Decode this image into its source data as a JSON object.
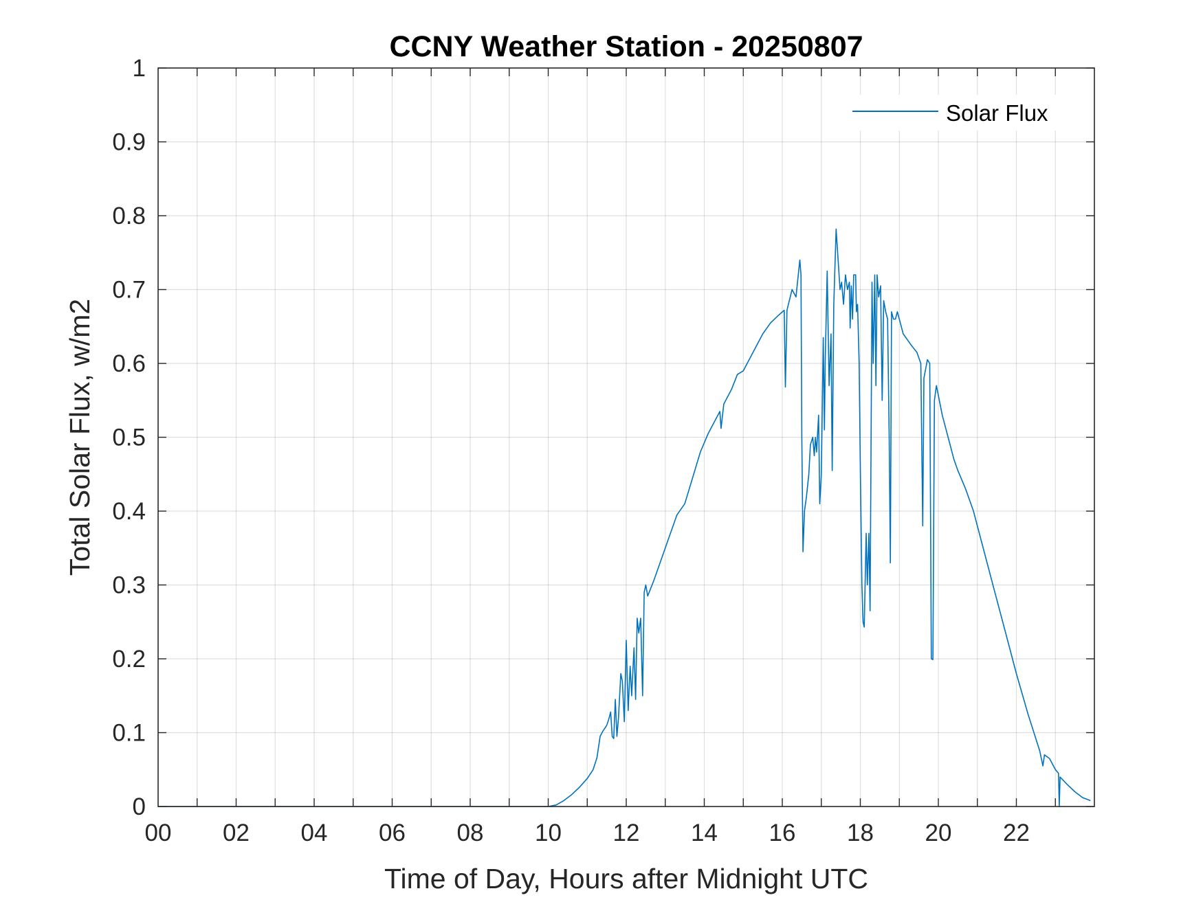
{
  "chart_data": {
    "type": "line",
    "title": "CCNY Weather Station - 20250807",
    "xlabel": "Time of Day, Hours after Midnight UTC",
    "ylabel": "Total Solar Flux, w/m2",
    "xlim": [
      0,
      24
    ],
    "ylim": [
      0,
      1
    ],
    "grid": true,
    "legend_position": "top-right",
    "x_ticks": [
      0,
      2,
      4,
      6,
      8,
      10,
      12,
      14,
      16,
      18,
      20,
      22
    ],
    "x_tick_labels": [
      "00",
      "02",
      "04",
      "06",
      "08",
      "10",
      "12",
      "14",
      "16",
      "18",
      "20",
      "22"
    ],
    "y_ticks": [
      0,
      0.1,
      0.2,
      0.3,
      0.4,
      0.5,
      0.6,
      0.7,
      0.8,
      0.9,
      1
    ],
    "y_tick_labels": [
      "0",
      "0.1",
      "0.2",
      "0.3",
      "0.4",
      "0.5",
      "0.6",
      "0.7",
      "0.8",
      "0.9",
      "1"
    ],
    "series": [
      {
        "name": "Solar Flux",
        "color": "#0072BD",
        "points": [
          [
            0,
            0
          ],
          [
            10.0,
            0
          ],
          [
            10.2,
            0.002
          ],
          [
            10.4,
            0.008
          ],
          [
            10.6,
            0.016
          ],
          [
            10.8,
            0.026
          ],
          [
            11.0,
            0.038
          ],
          [
            11.15,
            0.05
          ],
          [
            11.25,
            0.066
          ],
          [
            11.33,
            0.095
          ],
          [
            11.4,
            0.102
          ],
          [
            11.5,
            0.11
          ],
          [
            11.55,
            0.118
          ],
          [
            11.6,
            0.128
          ],
          [
            11.64,
            0.095
          ],
          [
            11.68,
            0.092
          ],
          [
            11.72,
            0.145
          ],
          [
            11.76,
            0.095
          ],
          [
            11.8,
            0.12
          ],
          [
            11.86,
            0.18
          ],
          [
            11.9,
            0.17
          ],
          [
            11.95,
            0.115
          ],
          [
            12.0,
            0.225
          ],
          [
            12.05,
            0.13
          ],
          [
            12.1,
            0.19
          ],
          [
            12.14,
            0.15
          ],
          [
            12.2,
            0.215
          ],
          [
            12.24,
            0.145
          ],
          [
            12.28,
            0.255
          ],
          [
            12.32,
            0.235
          ],
          [
            12.37,
            0.255
          ],
          [
            12.42,
            0.15
          ],
          [
            12.46,
            0.29
          ],
          [
            12.5,
            0.3
          ],
          [
            12.55,
            0.285
          ],
          [
            12.7,
            0.305
          ],
          [
            12.9,
            0.335
          ],
          [
            13.1,
            0.365
          ],
          [
            13.3,
            0.395
          ],
          [
            13.5,
            0.41
          ],
          [
            13.7,
            0.445
          ],
          [
            13.9,
            0.48
          ],
          [
            14.1,
            0.505
          ],
          [
            14.3,
            0.525
          ],
          [
            14.4,
            0.535
          ],
          [
            14.43,
            0.512
          ],
          [
            14.5,
            0.545
          ],
          [
            14.7,
            0.565
          ],
          [
            14.85,
            0.585
          ],
          [
            15.0,
            0.59
          ],
          [
            15.1,
            0.6
          ],
          [
            15.2,
            0.61
          ],
          [
            15.35,
            0.625
          ],
          [
            15.5,
            0.64
          ],
          [
            15.7,
            0.655
          ],
          [
            15.9,
            0.665
          ],
          [
            16.05,
            0.672
          ],
          [
            16.08,
            0.568
          ],
          [
            16.12,
            0.672
          ],
          [
            16.25,
            0.7
          ],
          [
            16.35,
            0.69
          ],
          [
            16.45,
            0.74
          ],
          [
            16.48,
            0.72
          ],
          [
            16.5,
            0.5
          ],
          [
            16.53,
            0.345
          ],
          [
            16.57,
            0.4
          ],
          [
            16.62,
            0.42
          ],
          [
            16.68,
            0.45
          ],
          [
            16.72,
            0.49
          ],
          [
            16.78,
            0.5
          ],
          [
            16.82,
            0.475
          ],
          [
            16.85,
            0.5
          ],
          [
            16.88,
            0.48
          ],
          [
            16.93,
            0.53
          ],
          [
            16.96,
            0.41
          ],
          [
            17.0,
            0.45
          ],
          [
            17.05,
            0.635
          ],
          [
            17.08,
            0.51
          ],
          [
            17.1,
            0.6
          ],
          [
            17.15,
            0.725
          ],
          [
            17.2,
            0.57
          ],
          [
            17.25,
            0.64
          ],
          [
            17.28,
            0.455
          ],
          [
            17.32,
            0.68
          ],
          [
            17.38,
            0.782
          ],
          [
            17.43,
            0.74
          ],
          [
            17.48,
            0.7
          ],
          [
            17.52,
            0.71
          ],
          [
            17.57,
            0.68
          ],
          [
            17.62,
            0.72
          ],
          [
            17.67,
            0.7
          ],
          [
            17.72,
            0.71
          ],
          [
            17.74,
            0.648
          ],
          [
            17.77,
            0.705
          ],
          [
            17.8,
            0.66
          ],
          [
            17.83,
            0.72
          ],
          [
            17.88,
            0.72
          ],
          [
            17.9,
            0.67
          ],
          [
            17.93,
            0.68
          ],
          [
            17.97,
            0.6
          ],
          [
            18.0,
            0.46
          ],
          [
            18.04,
            0.3
          ],
          [
            18.07,
            0.25
          ],
          [
            18.1,
            0.243
          ],
          [
            18.15,
            0.37
          ],
          [
            18.18,
            0.3
          ],
          [
            18.22,
            0.37
          ],
          [
            18.25,
            0.265
          ],
          [
            18.3,
            0.71
          ],
          [
            18.33,
            0.6
          ],
          [
            18.37,
            0.72
          ],
          [
            18.4,
            0.57
          ],
          [
            18.43,
            0.72
          ],
          [
            18.47,
            0.69
          ],
          [
            18.52,
            0.705
          ],
          [
            18.56,
            0.55
          ],
          [
            18.6,
            0.685
          ],
          [
            18.65,
            0.67
          ],
          [
            18.7,
            0.66
          ],
          [
            18.74,
            0.5
          ],
          [
            18.77,
            0.33
          ],
          [
            18.8,
            0.67
          ],
          [
            18.85,
            0.66
          ],
          [
            18.9,
            0.66
          ],
          [
            18.95,
            0.67
          ],
          [
            19.1,
            0.64
          ],
          [
            19.3,
            0.625
          ],
          [
            19.45,
            0.615
          ],
          [
            19.55,
            0.6
          ],
          [
            19.6,
            0.38
          ],
          [
            19.63,
            0.58
          ],
          [
            19.72,
            0.605
          ],
          [
            19.78,
            0.6
          ],
          [
            19.82,
            0.2
          ],
          [
            19.86,
            0.199
          ],
          [
            19.9,
            0.55
          ],
          [
            19.95,
            0.57
          ],
          [
            20.1,
            0.53
          ],
          [
            20.25,
            0.5
          ],
          [
            20.4,
            0.47
          ],
          [
            20.5,
            0.455
          ],
          [
            20.7,
            0.43
          ],
          [
            20.9,
            0.4
          ],
          [
            21.1,
            0.36
          ],
          [
            21.4,
            0.3
          ],
          [
            21.7,
            0.24
          ],
          [
            22.0,
            0.18
          ],
          [
            22.3,
            0.125
          ],
          [
            22.6,
            0.075
          ],
          [
            22.68,
            0.055
          ],
          [
            22.72,
            0.07
          ],
          [
            22.85,
            0.065
          ],
          [
            23.0,
            0.05
          ],
          [
            23.08,
            0.045
          ],
          [
            23.1,
            0.0
          ],
          [
            23.12,
            0.04
          ],
          [
            23.3,
            0.03
          ],
          [
            23.5,
            0.02
          ],
          [
            23.7,
            0.012
          ],
          [
            23.9,
            0.008
          ]
        ]
      }
    ],
    "legend": [
      {
        "name": "Solar Flux",
        "color": "#0072BD"
      }
    ]
  }
}
